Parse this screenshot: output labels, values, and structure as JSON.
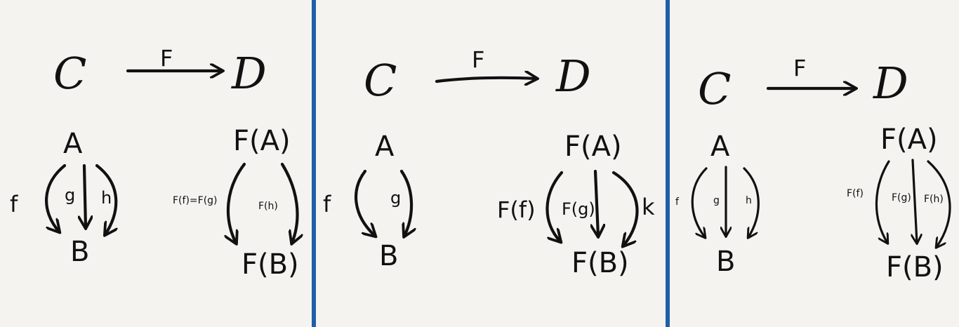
{
  "panels": [
    {
      "category_source": "C",
      "category_target": "D",
      "functor": "F",
      "objects": [
        "A",
        "B"
      ],
      "morphisms": [
        "f",
        "g",
        "h"
      ],
      "image_objects": [
        "F(A)",
        "F(B)"
      ],
      "image_morphisms": [
        "F(f)=F(g)",
        "F(h)"
      ]
    },
    {
      "category_source": "C",
      "category_target": "D",
      "functor": "F",
      "objects": [
        "A",
        "B"
      ],
      "morphisms": [
        "f",
        "g"
      ],
      "image_objects": [
        "F(A)",
        "F(B)"
      ],
      "image_morphisms": [
        "F(f)",
        "F(g)",
        "k"
      ]
    },
    {
      "category_source": "C",
      "category_target": "D",
      "functor": "F",
      "objects": [
        "A",
        "B"
      ],
      "morphisms": [
        "f",
        "g",
        "h"
      ],
      "image_objects": [
        "F(A)",
        "F(B)"
      ],
      "image_morphisms": [
        "F(f)",
        "F(g)",
        "F(h)"
      ]
    }
  ],
  "colors": {
    "ink": "#111111",
    "divider": "#1f5fa8",
    "background": "#f4f3f0"
  }
}
